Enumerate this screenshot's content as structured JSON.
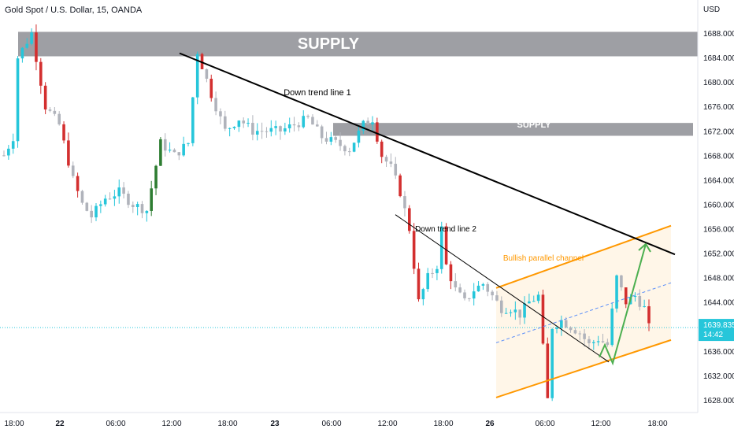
{
  "header": {
    "title": "Gold Spot / U.S. Dollar, 15, OANDA",
    "currency": "USD"
  },
  "price_label": {
    "value": "1639.835",
    "countdown": "14:42",
    "color": "#26c6da"
  },
  "chart_data": {
    "type": "candlestick",
    "title": "Gold Spot / U.S. Dollar, 15, OANDA",
    "y_unit": "USD",
    "ylim": [
      1626,
      1690
    ],
    "y_ticks": [
      "1688.000",
      "1684.000",
      "1680.000",
      "1676.000",
      "1672.000",
      "1668.000",
      "1664.000",
      "1660.000",
      "1656.000",
      "1652.000",
      "1648.000",
      "1644.000",
      "1636.000",
      "1632.000",
      "1628.000"
    ],
    "x_ticks": [
      "18:00",
      "22",
      "06:00",
      "12:00",
      "18:00",
      "23",
      "06:00",
      "12:00",
      "18:00",
      "26",
      "06:00",
      "12:00",
      "18:00"
    ],
    "current_price": 1639.835,
    "price_path": [
      [
        0,
        1668
      ],
      [
        2,
        1671
      ],
      [
        3,
        1684
      ],
      [
        6,
        1688
      ],
      [
        9,
        1676
      ],
      [
        12,
        1673
      ],
      [
        15,
        1664
      ],
      [
        17,
        1660
      ],
      [
        19,
        1658
      ],
      [
        22,
        1661
      ],
      [
        25,
        1662
      ],
      [
        28,
        1660
      ],
      [
        31,
        1659
      ],
      [
        34,
        1670
      ],
      [
        37,
        1668
      ],
      [
        40,
        1670
      ],
      [
        42,
        1685
      ],
      [
        45,
        1678
      ],
      [
        48,
        1672
      ],
      [
        51,
        1674
      ],
      [
        54,
        1672
      ],
      [
        57,
        1672
      ],
      [
        60,
        1672
      ],
      [
        63,
        1673
      ],
      [
        66,
        1674
      ],
      [
        69,
        1671
      ],
      [
        72,
        1670
      ],
      [
        75,
        1669
      ],
      [
        78,
        1673
      ],
      [
        80,
        1674
      ],
      [
        82,
        1668
      ],
      [
        84,
        1666
      ],
      [
        86,
        1662
      ],
      [
        88,
        1656
      ],
      [
        90,
        1644
      ],
      [
        92,
        1648
      ],
      [
        94,
        1650
      ],
      [
        95,
        1656
      ],
      [
        96,
        1650
      ],
      [
        98,
        1646
      ],
      [
        100,
        1644
      ],
      [
        102,
        1646
      ],
      [
        104,
        1647
      ],
      [
        106,
        1645
      ],
      [
        108,
        1643
      ],
      [
        110,
        1643
      ],
      [
        112,
        1642
      ],
      [
        114,
        1644
      ],
      [
        116,
        1645
      ],
      [
        118,
        1628
      ],
      [
        119,
        1640
      ],
      [
        121,
        1641
      ],
      [
        123,
        1640
      ],
      [
        125,
        1639
      ],
      [
        127,
        1637
      ],
      [
        129,
        1638
      ],
      [
        131,
        1637
      ],
      [
        133,
        1648
      ],
      [
        135,
        1644
      ],
      [
        137,
        1645
      ],
      [
        139,
        1643
      ],
      [
        140,
        1639.8
      ]
    ],
    "annotations": {
      "supply_zones": [
        {
          "label": "SUPPLY",
          "price_low": 1684.2,
          "price_high": 1688.2
        },
        {
          "label": "SUPPLY",
          "price_low": 1671.2,
          "price_high": 1673.3
        }
      ],
      "trend_lines": [
        {
          "label": "Down trend line 1",
          "from": [
            1684.7
          ],
          "to": [
            1651.8
          ]
        },
        {
          "label": "Down trend line 2",
          "from": [
            1658.3
          ],
          "to": [
            1634.2
          ]
        }
      ],
      "channel": {
        "label": "Bullish parallel channel",
        "upper": [
          1646.3,
          1656.5
        ],
        "lower": [
          1628.4,
          1637.8
        ]
      },
      "projection": [
        1635,
        1637,
        1634,
        1653.5
      ]
    },
    "colors": {
      "up": "#26c6da",
      "down": "#b0b3bb",
      "down_strong": "#d32f2f",
      "up_strong": "#2e7d32",
      "supply_zone": "#9e9fa4",
      "trend_line_1": "#000000",
      "trend_line_2": "#000000",
      "channel": "#ff9800",
      "channel_fill": "#fff3e0",
      "projection": "#4caf50",
      "midline": "#5b8ff9"
    }
  }
}
